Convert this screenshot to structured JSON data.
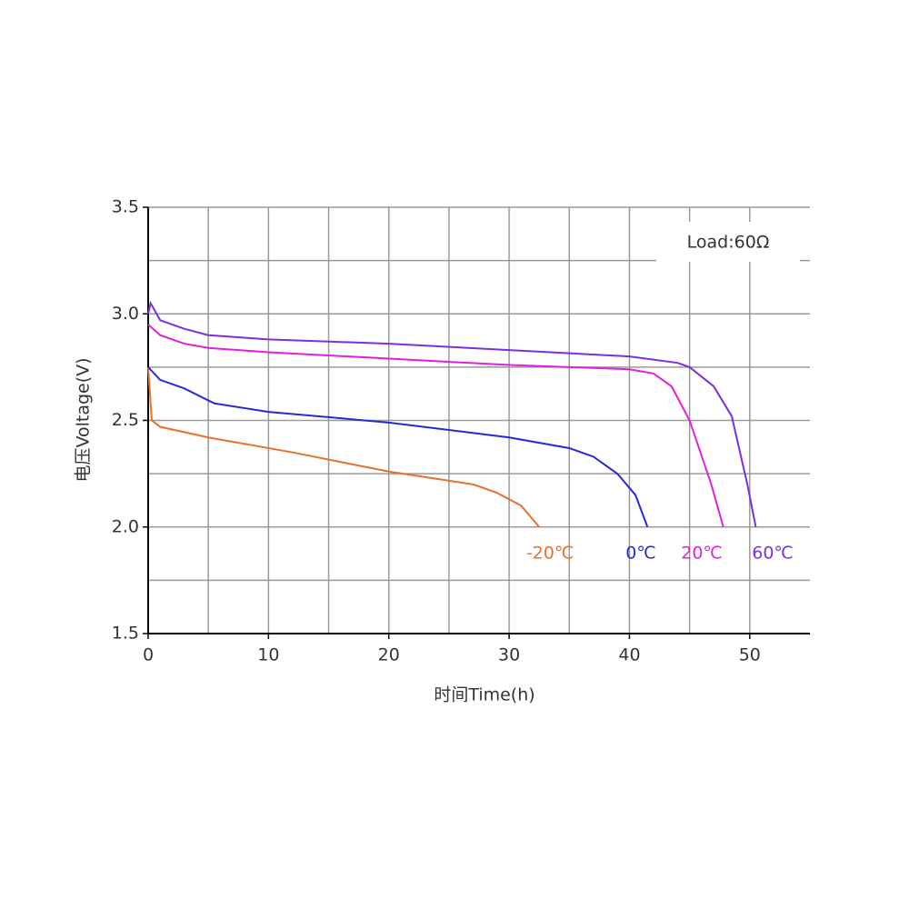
{
  "chart_data": {
    "type": "line",
    "annotation": "Load:60Ω",
    "x_label": "时间Time(h)",
    "y_label": "电压Voltage(V)",
    "xlim": [
      0,
      55
    ],
    "ylim": [
      1.5,
      3.5
    ],
    "xticks": [
      0,
      10,
      20,
      30,
      40,
      50
    ],
    "yticks": [
      1.5,
      {
        "value": 2,
        "label": "2.0"
      },
      2.5,
      {
        "value": 3,
        "label": "3.0"
      },
      3.5
    ],
    "xminor": [
      5,
      15,
      25,
      35,
      45
    ],
    "yminor": [
      1.75,
      2.25,
      2.75,
      3.25
    ],
    "grid": true,
    "series": [
      {
        "name": "-20℃",
        "color": "#e8702a",
        "x": [
          0,
          0.3,
          1,
          5,
          12,
          20,
          27,
          29,
          31,
          32.5
        ],
        "values": [
          2.75,
          2.5,
          2.47,
          2.42,
          2.35,
          2.26,
          2.2,
          2.16,
          2.1,
          2.0
        ]
      },
      {
        "name": "0℃",
        "color": "#2828d8",
        "x": [
          0,
          1,
          3,
          5.5,
          10,
          20,
          30,
          35,
          37,
          39,
          40.5,
          41.5
        ],
        "values": [
          2.75,
          2.69,
          2.65,
          2.58,
          2.54,
          2.49,
          2.42,
          2.37,
          2.33,
          2.25,
          2.15,
          2.0
        ]
      },
      {
        "name": "20℃",
        "color": "#e020e0",
        "x": [
          0,
          1,
          3,
          5,
          10,
          20,
          30,
          40,
          42,
          43.5,
          45,
          46.8,
          47.8
        ],
        "values": [
          2.95,
          2.9,
          2.86,
          2.84,
          2.82,
          2.79,
          2.76,
          2.74,
          2.72,
          2.66,
          2.5,
          2.2,
          2.0
        ]
      },
      {
        "name": "60℃",
        "color": "#7b2fe0",
        "x": [
          0,
          0.2,
          1,
          3,
          5,
          10,
          20,
          30,
          40,
          44,
          45,
          47,
          48.5,
          49.8,
          50.5
        ],
        "values": [
          3.0,
          3.05,
          2.97,
          2.93,
          2.9,
          2.88,
          2.86,
          2.83,
          2.8,
          2.77,
          2.75,
          2.66,
          2.52,
          2.2,
          2.0
        ]
      }
    ]
  }
}
